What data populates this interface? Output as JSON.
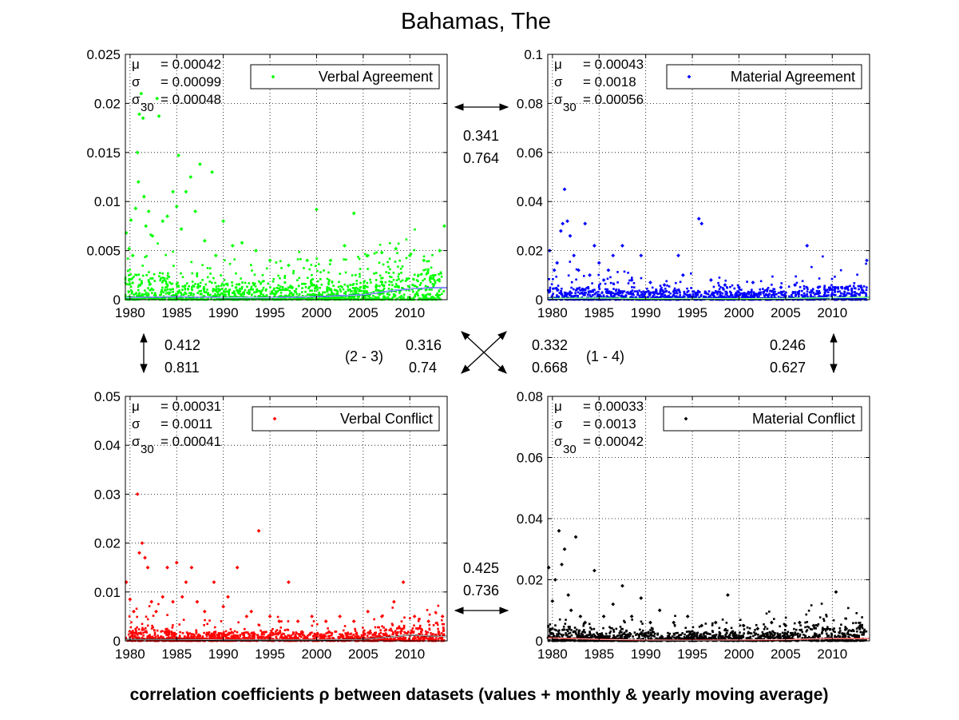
{
  "figure": {
    "title": "Bahamas, The",
    "footer": "correlation coefficients ρ between datasets (values + monthly & yearly moving average)"
  },
  "chart_data": [
    {
      "id": "verbal-agreement",
      "type": "scatter",
      "legend": "Verbal Agreement",
      "color": "#00ff00",
      "avg_color": "#0000ff",
      "xlim": [
        1979.5,
        2014
      ],
      "ylim": [
        0,
        0.025
      ],
      "xticks": [
        1980,
        1985,
        1990,
        1995,
        2000,
        2005,
        2010
      ],
      "yticks": [
        0,
        0.005,
        0.01,
        0.015,
        0.02,
        0.025
      ],
      "yticklabels": [
        "0",
        "0.005",
        "0.01",
        "0.015",
        "0.02",
        "0.025"
      ],
      "grid": true,
      "legend_position": "top-right",
      "stats": {
        "mu": "= 0.00042",
        "sigma": "= 0.00099",
        "sigma30": "= 0.00048"
      },
      "points": [
        [
          1979.6,
          0.0068
        ],
        [
          1979.9,
          0.0052
        ],
        [
          1980.1,
          0.0081
        ],
        [
          1980.3,
          0.0045
        ],
        [
          1980.6,
          0.0093
        ],
        [
          1980.8,
          0.015
        ],
        [
          1980.9,
          0.012
        ],
        [
          1981.0,
          0.0189
        ],
        [
          1981.2,
          0.021
        ],
        [
          1981.4,
          0.0185
        ],
        [
          1981.5,
          0.0105
        ],
        [
          1981.7,
          0.0075
        ],
        [
          1982.0,
          0.009
        ],
        [
          1982.4,
          0.0065
        ],
        [
          1982.9,
          0.0205
        ],
        [
          1983.1,
          0.0187
        ],
        [
          1983.5,
          0.008
        ],
        [
          1984.0,
          0.0085
        ],
        [
          1984.6,
          0.011
        ],
        [
          1985.0,
          0.0095
        ],
        [
          1985.2,
          0.0147
        ],
        [
          1985.5,
          0.0072
        ],
        [
          1986.0,
          0.011
        ],
        [
          1986.5,
          0.0125
        ],
        [
          1987.0,
          0.009
        ],
        [
          1987.5,
          0.0138
        ],
        [
          1988.0,
          0.006
        ],
        [
          1988.8,
          0.013
        ],
        [
          1989.2,
          0.0045
        ],
        [
          1990.0,
          0.008
        ],
        [
          1991.0,
          0.0055
        ],
        [
          1992.0,
          0.0058
        ],
        [
          1993.5,
          0.005
        ],
        [
          1995.0,
          0.004
        ],
        [
          1997.0,
          0.0035
        ],
        [
          1999.0,
          0.004
        ],
        [
          2000.0,
          0.0092
        ],
        [
          2001.5,
          0.004
        ],
        [
          2003.0,
          0.0055
        ],
        [
          2004.0,
          0.0088
        ],
        [
          2005.5,
          0.0045
        ],
        [
          2007.0,
          0.0048
        ],
        [
          2008.5,
          0.0052
        ],
        [
          2010.0,
          0.0045
        ],
        [
          2011.5,
          0.004
        ],
        [
          2013.2,
          0.005
        ],
        [
          2013.7,
          0.0075
        ]
      ],
      "moving_average": [
        [
          1979.5,
          0.0002
        ],
        [
          1985,
          0.0003
        ],
        [
          1990,
          0.0002
        ],
        [
          1995,
          0.0002
        ],
        [
          2000,
          0.0003
        ],
        [
          2005,
          0.0005
        ],
        [
          2008,
          0.0009
        ],
        [
          2010,
          0.0011
        ],
        [
          2012,
          0.0012
        ],
        [
          2014,
          0.0012
        ]
      ]
    },
    {
      "id": "material-agreement",
      "type": "scatter",
      "legend": "Material Agreement",
      "color": "#0000ff",
      "avg_color": "#00ff00",
      "xlim": [
        1979.5,
        2014
      ],
      "ylim": [
        0,
        0.1
      ],
      "xticks": [
        1980,
        1985,
        1990,
        1995,
        2000,
        2005,
        2010
      ],
      "yticks": [
        0,
        0.02,
        0.04,
        0.06,
        0.08,
        0.1
      ],
      "yticklabels": [
        "0",
        "0.02",
        "0.04",
        "0.06",
        "0.08",
        "0.1"
      ],
      "grid": true,
      "legend_position": "top-right",
      "stats": {
        "mu": "= 0.00043",
        "sigma": "= 0.0018",
        "sigma30": "= 0.00056"
      },
      "points": [
        [
          1979.7,
          0.02
        ],
        [
          1980.2,
          0.012
        ],
        [
          1980.5,
          0.015
        ],
        [
          1980.9,
          0.028
        ],
        [
          1981.1,
          0.031
        ],
        [
          1981.3,
          0.045
        ],
        [
          1981.6,
          0.032
        ],
        [
          1981.9,
          0.026
        ],
        [
          1982.3,
          0.018
        ],
        [
          1982.8,
          0.012
        ],
        [
          1983.5,
          0.031
        ],
        [
          1984.0,
          0.01
        ],
        [
          1984.5,
          0.022
        ],
        [
          1985.0,
          0.015
        ],
        [
          1985.5,
          0.008
        ],
        [
          1986.0,
          0.012
        ],
        [
          1986.5,
          0.018
        ],
        [
          1987.5,
          0.022
        ],
        [
          1988.5,
          0.008
        ],
        [
          1989.5,
          0.018
        ],
        [
          1990.5,
          0.007
        ],
        [
          1992.0,
          0.006
        ],
        [
          1993.5,
          0.018
        ],
        [
          1994.0,
          0.01
        ],
        [
          1995.7,
          0.033
        ],
        [
          1996.0,
          0.031
        ],
        [
          1997.0,
          0.008
        ],
        [
          1998.5,
          0.006
        ],
        [
          2000.0,
          0.005
        ],
        [
          2001.5,
          0.007
        ],
        [
          2003.0,
          0.004
        ],
        [
          2004.5,
          0.005
        ],
        [
          2006.0,
          0.006
        ],
        [
          2007.3,
          0.022
        ],
        [
          2008.5,
          0.005
        ],
        [
          2010.0,
          0.004
        ],
        [
          2011.5,
          0.005
        ],
        [
          2013.7,
          0.016
        ]
      ],
      "moving_average": [
        [
          1979.5,
          0.0005
        ],
        [
          1985,
          0.0007
        ],
        [
          1990,
          0.0004
        ],
        [
          1995,
          0.0005
        ],
        [
          2000,
          0.0004
        ],
        [
          2005,
          0.0005
        ],
        [
          2010,
          0.0008
        ],
        [
          2014,
          0.0009
        ]
      ]
    },
    {
      "id": "verbal-conflict",
      "type": "scatter",
      "legend": "Verbal Conflict",
      "color": "#ff0000",
      "avg_color": "#000000",
      "xlim": [
        1979.5,
        2014
      ],
      "ylim": [
        0,
        0.05
      ],
      "xticks": [
        1980,
        1985,
        1990,
        1995,
        2000,
        2005,
        2010
      ],
      "yticks": [
        0,
        0.01,
        0.02,
        0.03,
        0.04,
        0.05
      ],
      "yticklabels": [
        "0",
        "0.01",
        "0.02",
        "0.03",
        "0.04",
        "0.05"
      ],
      "grid": true,
      "legend_position": "top-right",
      "stats": {
        "mu": "= 0.00031",
        "sigma": "= 0.0011",
        "sigma30": "= 0.00041"
      },
      "points": [
        [
          1979.6,
          0.012
        ],
        [
          1980.0,
          0.0085
        ],
        [
          1980.4,
          0.006
        ],
        [
          1980.8,
          0.03
        ],
        [
          1981.0,
          0.018
        ],
        [
          1981.3,
          0.02
        ],
        [
          1981.6,
          0.017
        ],
        [
          1981.9,
          0.015
        ],
        [
          1982.3,
          0.008
        ],
        [
          1982.8,
          0.006
        ],
        [
          1983.5,
          0.009
        ],
        [
          1984.0,
          0.015
        ],
        [
          1984.6,
          0.008
        ],
        [
          1985.0,
          0.016
        ],
        [
          1985.6,
          0.009
        ],
        [
          1986.0,
          0.012
        ],
        [
          1986.6,
          0.015
        ],
        [
          1987.2,
          0.008
        ],
        [
          1988.0,
          0.006
        ],
        [
          1989.0,
          0.012
        ],
        [
          1990.0,
          0.007
        ],
        [
          1990.5,
          0.009
        ],
        [
          1991.5,
          0.015
        ],
        [
          1992.5,
          0.005
        ],
        [
          1993.0,
          0.006
        ],
        [
          1993.8,
          0.0225
        ],
        [
          1995.0,
          0.005
        ],
        [
          1996.0,
          0.004
        ],
        [
          1997.0,
          0.012
        ],
        [
          1998.0,
          0.004
        ],
        [
          1999.5,
          0.005
        ],
        [
          2001.0,
          0.004
        ],
        [
          2002.5,
          0.005
        ],
        [
          2004.0,
          0.004
        ],
        [
          2005.5,
          0.006
        ],
        [
          2007.0,
          0.005
        ],
        [
          2008.3,
          0.008
        ],
        [
          2009.3,
          0.012
        ],
        [
          2010.5,
          0.005
        ],
        [
          2012.0,
          0.004
        ],
        [
          2013.5,
          0.005
        ]
      ],
      "moving_average": [
        [
          1979.5,
          0.0003
        ],
        [
          1985,
          0.0003
        ],
        [
          1990,
          0.0002
        ],
        [
          1995,
          0.0002
        ],
        [
          2000,
          0.0002
        ],
        [
          2005,
          0.0003
        ],
        [
          2008,
          0.0008
        ],
        [
          2010,
          0.0012
        ],
        [
          2012,
          0.001
        ],
        [
          2014,
          0.0009
        ]
      ]
    },
    {
      "id": "material-conflict",
      "type": "scatter",
      "legend": "Material Conflict",
      "color": "#000000",
      "avg_color": "#ff0000",
      "xlim": [
        1979.5,
        2014
      ],
      "ylim": [
        0,
        0.08
      ],
      "xticks": [
        1980,
        1985,
        1990,
        1995,
        2000,
        2005,
        2010
      ],
      "yticks": [
        0,
        0.02,
        0.04,
        0.06,
        0.08
      ],
      "yticklabels": [
        "0",
        "0.02",
        "0.04",
        "0.06",
        "0.08"
      ],
      "grid": true,
      "legend_position": "top-right",
      "stats": {
        "mu": "= 0.00033",
        "sigma": "= 0.0013",
        "sigma30": "= 0.00042"
      },
      "points": [
        [
          1979.6,
          0.024
        ],
        [
          1980.0,
          0.013
        ],
        [
          1980.3,
          0.02
        ],
        [
          1980.7,
          0.036
        ],
        [
          1981.0,
          0.025
        ],
        [
          1981.3,
          0.03
        ],
        [
          1981.7,
          0.015
        ],
        [
          1982.0,
          0.01
        ],
        [
          1982.5,
          0.034
        ],
        [
          1983.0,
          0.008
        ],
        [
          1983.5,
          0.006
        ],
        [
          1984.5,
          0.023
        ],
        [
          1985.5,
          0.008
        ],
        [
          1986.5,
          0.012
        ],
        [
          1987.5,
          0.018
        ],
        [
          1988.5,
          0.008
        ],
        [
          1989.5,
          0.014
        ],
        [
          1990.5,
          0.006
        ],
        [
          1991.5,
          0.01
        ],
        [
          1993.0,
          0.006
        ],
        [
          1994.5,
          0.008
        ],
        [
          1996.0,
          0.005
        ],
        [
          1997.5,
          0.006
        ],
        [
          1998.8,
          0.015
        ],
        [
          2000.5,
          0.005
        ],
        [
          2002.0,
          0.004
        ],
        [
          2003.5,
          0.006
        ],
        [
          2005.0,
          0.005
        ],
        [
          2006.5,
          0.006
        ],
        [
          2008.0,
          0.005
        ],
        [
          2009.5,
          0.004
        ],
        [
          2010.4,
          0.016
        ],
        [
          2011.5,
          0.004
        ],
        [
          2013.0,
          0.005
        ]
      ],
      "moving_average": [
        [
          1979.5,
          0.001
        ],
        [
          1985,
          0.0005
        ],
        [
          1990,
          0.0003
        ],
        [
          1995,
          0.0002
        ],
        [
          2000,
          0.0003
        ],
        [
          2005,
          0.0004
        ],
        [
          2010,
          0.0008
        ],
        [
          2014,
          0.0007
        ]
      ]
    }
  ],
  "correlations": {
    "top": [
      "0.341",
      "0.764"
    ],
    "bottom": [
      "0.425",
      "0.736"
    ],
    "left": [
      "0.412",
      "0.811"
    ],
    "right": [
      "0.246",
      "0.627"
    ],
    "diag_23": [
      "0.316",
      "0.74"
    ],
    "diag_14": [
      "0.332",
      "0.668"
    ],
    "label_23": "(2 - 3)",
    "label_14": "(1 - 4)"
  }
}
